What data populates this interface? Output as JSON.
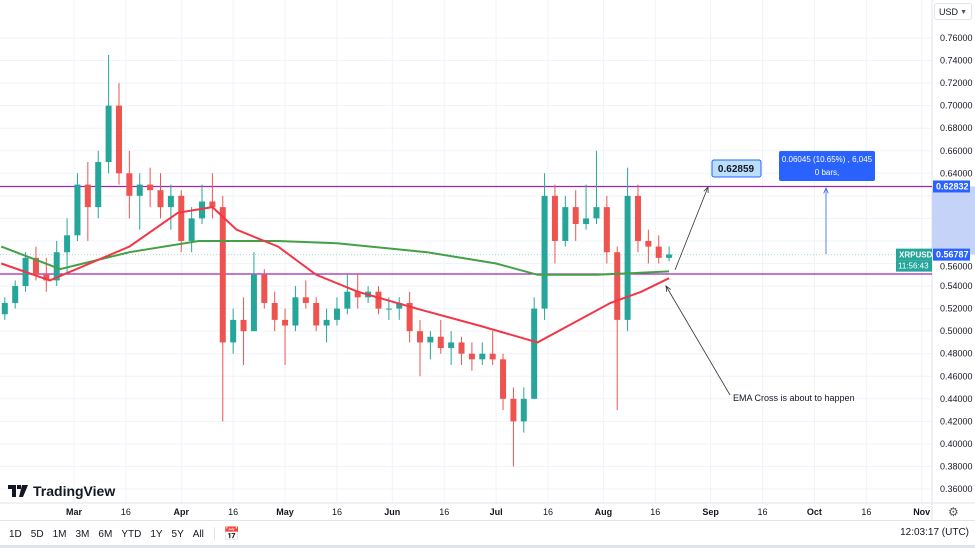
{
  "symbol": "XRPUSD",
  "currency": "USD",
  "brand": "TradingView",
  "last_price": "0.56787",
  "countdown": "11:56:43",
  "clock": "12:03:17 (UTC)",
  "range_buttons": [
    "1D",
    "5D",
    "1M",
    "3M",
    "6M",
    "YTD",
    "1Y",
    "5Y",
    "All"
  ],
  "colors": {
    "up": "#26a69a",
    "down": "#ef5350",
    "ema_fast": "#f23645",
    "ema_slow": "#43a047",
    "hline": "#9c27b0",
    "measure": "#2962ff"
  },
  "annotations": {
    "price_callout": "0.62859",
    "measure_line1": "0.06045 (10.65%) , 6,045",
    "measure_line2": "0 bars,",
    "note": "EMA Cross is about to happen"
  },
  "chart_data": {
    "type": "candlestick",
    "ylim": [
      0.35,
      0.77
    ],
    "y_ticks": [
      "0.76000",
      "0.74000",
      "0.72000",
      "0.70000",
      "0.68000",
      "0.66000",
      "0.64000",
      "0.62000",
      "0.60000",
      "0.58000",
      "0.56000",
      "0.54000",
      "0.52000",
      "0.50000",
      "0.48000",
      "0.46000",
      "0.44000",
      "0.42000",
      "0.40000",
      "0.38000",
      "0.36000"
    ],
    "x_ticks": [
      [
        "2024-03-01",
        "Mar"
      ],
      [
        "2024-03-16",
        "16"
      ],
      [
        "2024-04-01",
        "Apr"
      ],
      [
        "2024-04-16",
        "16"
      ],
      [
        "2024-05-01",
        "May"
      ],
      [
        "2024-05-16",
        "16"
      ],
      [
        "2024-06-01",
        "Jun"
      ],
      [
        "2024-06-16",
        "16"
      ],
      [
        "2024-07-01",
        "Jul"
      ],
      [
        "2024-07-16",
        "16"
      ],
      [
        "2024-08-01",
        "Aug"
      ],
      [
        "2024-08-16",
        "16"
      ],
      [
        "2024-09-01",
        "Sep"
      ],
      [
        "2024-09-16",
        "16"
      ],
      [
        "2024-10-01",
        "Oct"
      ],
      [
        "2024-10-16",
        "16"
      ],
      [
        "2024-11-01",
        "Nov"
      ]
    ],
    "horizontal_lines": [
      0.62832,
      0.5507
    ],
    "candles": [
      [
        "2024-02-10",
        0.515,
        0.53,
        0.51,
        0.525
      ],
      [
        "2024-02-13",
        0.525,
        0.545,
        0.52,
        0.54
      ],
      [
        "2024-02-16",
        0.54,
        0.57,
        0.535,
        0.565
      ],
      [
        "2024-02-19",
        0.565,
        0.575,
        0.545,
        0.55
      ],
      [
        "2024-02-22",
        0.55,
        0.565,
        0.535,
        0.545
      ],
      [
        "2024-02-25",
        0.545,
        0.58,
        0.54,
        0.57
      ],
      [
        "2024-02-28",
        0.57,
        0.6,
        0.55,
        0.585
      ],
      [
        "2024-03-02",
        0.585,
        0.64,
        0.58,
        0.63
      ],
      [
        "2024-03-05",
        0.63,
        0.65,
        0.58,
        0.61
      ],
      [
        "2024-03-08",
        0.61,
        0.66,
        0.6,
        0.65
      ],
      [
        "2024-03-11",
        0.65,
        0.745,
        0.64,
        0.7
      ],
      [
        "2024-03-14",
        0.7,
        0.72,
        0.63,
        0.64
      ],
      [
        "2024-03-17",
        0.64,
        0.66,
        0.6,
        0.62
      ],
      [
        "2024-03-20",
        0.62,
        0.64,
        0.59,
        0.63
      ],
      [
        "2024-03-23",
        0.63,
        0.645,
        0.61,
        0.625
      ],
      [
        "2024-03-26",
        0.625,
        0.64,
        0.6,
        0.61
      ],
      [
        "2024-03-29",
        0.61,
        0.63,
        0.59,
        0.62
      ],
      [
        "2024-04-01",
        0.62,
        0.625,
        0.57,
        0.58
      ],
      [
        "2024-04-04",
        0.58,
        0.61,
        0.57,
        0.6
      ],
      [
        "2024-04-07",
        0.6,
        0.63,
        0.595,
        0.615
      ],
      [
        "2024-04-10",
        0.615,
        0.64,
        0.6,
        0.61
      ],
      [
        "2024-04-13",
        0.61,
        0.62,
        0.42,
        0.49
      ],
      [
        "2024-04-16",
        0.49,
        0.52,
        0.48,
        0.51
      ],
      [
        "2024-04-19",
        0.51,
        0.53,
        0.47,
        0.5
      ],
      [
        "2024-04-22",
        0.5,
        0.57,
        0.5,
        0.55
      ],
      [
        "2024-04-25",
        0.55,
        0.555,
        0.52,
        0.525
      ],
      [
        "2024-04-28",
        0.525,
        0.535,
        0.5,
        0.51
      ],
      [
        "2024-05-01",
        0.51,
        0.52,
        0.47,
        0.505
      ],
      [
        "2024-05-04",
        0.505,
        0.54,
        0.5,
        0.53
      ],
      [
        "2024-05-07",
        0.53,
        0.545,
        0.52,
        0.525
      ],
      [
        "2024-05-10",
        0.525,
        0.53,
        0.5,
        0.505
      ],
      [
        "2024-05-13",
        0.505,
        0.52,
        0.49,
        0.51
      ],
      [
        "2024-05-16",
        0.51,
        0.53,
        0.505,
        0.52
      ],
      [
        "2024-05-19",
        0.52,
        0.55,
        0.515,
        0.535
      ],
      [
        "2024-05-22",
        0.535,
        0.55,
        0.52,
        0.53
      ],
      [
        "2024-05-25",
        0.53,
        0.54,
        0.525,
        0.535
      ],
      [
        "2024-05-28",
        0.535,
        0.54,
        0.515,
        0.52
      ],
      [
        "2024-05-31",
        0.52,
        0.53,
        0.51,
        0.52
      ],
      [
        "2024-06-03",
        0.52,
        0.53,
        0.51,
        0.525
      ],
      [
        "2024-06-06",
        0.525,
        0.535,
        0.49,
        0.5
      ],
      [
        "2024-06-09",
        0.5,
        0.51,
        0.46,
        0.49
      ],
      [
        "2024-06-12",
        0.49,
        0.5,
        0.475,
        0.495
      ],
      [
        "2024-06-15",
        0.495,
        0.51,
        0.48,
        0.485
      ],
      [
        "2024-06-18",
        0.485,
        0.5,
        0.47,
        0.49
      ],
      [
        "2024-06-21",
        0.49,
        0.495,
        0.47,
        0.48
      ],
      [
        "2024-06-24",
        0.48,
        0.49,
        0.465,
        0.475
      ],
      [
        "2024-06-27",
        0.475,
        0.49,
        0.47,
        0.48
      ],
      [
        "2024-06-30",
        0.48,
        0.5,
        0.47,
        0.475
      ],
      [
        "2024-07-03",
        0.475,
        0.48,
        0.43,
        0.44
      ],
      [
        "2024-07-06",
        0.44,
        0.45,
        0.38,
        0.42
      ],
      [
        "2024-07-09",
        0.42,
        0.45,
        0.41,
        0.44
      ],
      [
        "2024-07-12",
        0.44,
        0.53,
        0.44,
        0.52
      ],
      [
        "2024-07-15",
        0.52,
        0.64,
        0.51,
        0.62
      ],
      [
        "2024-07-18",
        0.62,
        0.63,
        0.56,
        0.58
      ],
      [
        "2024-07-21",
        0.58,
        0.62,
        0.575,
        0.61
      ],
      [
        "2024-07-24",
        0.61,
        0.625,
        0.58,
        0.595
      ],
      [
        "2024-07-27",
        0.595,
        0.63,
        0.59,
        0.6
      ],
      [
        "2024-07-30",
        0.6,
        0.66,
        0.595,
        0.61
      ],
      [
        "2024-08-02",
        0.61,
        0.62,
        0.56,
        0.57
      ],
      [
        "2024-08-05",
        0.57,
        0.575,
        0.43,
        0.51
      ],
      [
        "2024-08-08",
        0.51,
        0.645,
        0.5,
        0.62
      ],
      [
        "2024-08-11",
        0.62,
        0.63,
        0.57,
        0.58
      ],
      [
        "2024-08-14",
        0.58,
        0.59,
        0.56,
        0.575
      ],
      [
        "2024-08-17",
        0.575,
        0.585,
        0.56,
        0.565
      ],
      [
        "2024-08-20",
        0.565,
        0.575,
        0.562,
        0.568
      ]
    ],
    "ema_fast": [
      [
        "2024-02-09",
        0.56
      ],
      [
        "2024-02-23",
        0.545
      ],
      [
        "2024-03-17",
        0.575
      ],
      [
        "2024-03-31",
        0.605
      ],
      [
        "2024-04-10",
        0.61
      ],
      [
        "2024-04-17",
        0.59
      ],
      [
        "2024-04-29",
        0.575
      ],
      [
        "2024-05-10",
        0.55
      ],
      [
        "2024-05-22",
        0.535
      ],
      [
        "2024-06-08",
        0.52
      ],
      [
        "2024-06-26",
        0.505
      ],
      [
        "2024-07-13",
        0.49
      ],
      [
        "2024-07-22",
        0.505
      ],
      [
        "2024-08-03",
        0.525
      ],
      [
        "2024-08-12",
        0.535
      ],
      [
        "2024-08-20",
        0.547
      ]
    ],
    "ema_slow": [
      [
        "2024-02-09",
        0.575
      ],
      [
        "2024-02-26",
        0.555
      ],
      [
        "2024-03-17",
        0.57
      ],
      [
        "2024-04-06",
        0.58
      ],
      [
        "2024-04-29",
        0.58
      ],
      [
        "2024-05-16",
        0.578
      ],
      [
        "2024-06-11",
        0.57
      ],
      [
        "2024-07-01",
        0.56
      ],
      [
        "2024-07-13",
        0.55
      ],
      [
        "2024-07-30",
        0.55
      ],
      [
        "2024-08-20",
        0.553
      ]
    ]
  }
}
